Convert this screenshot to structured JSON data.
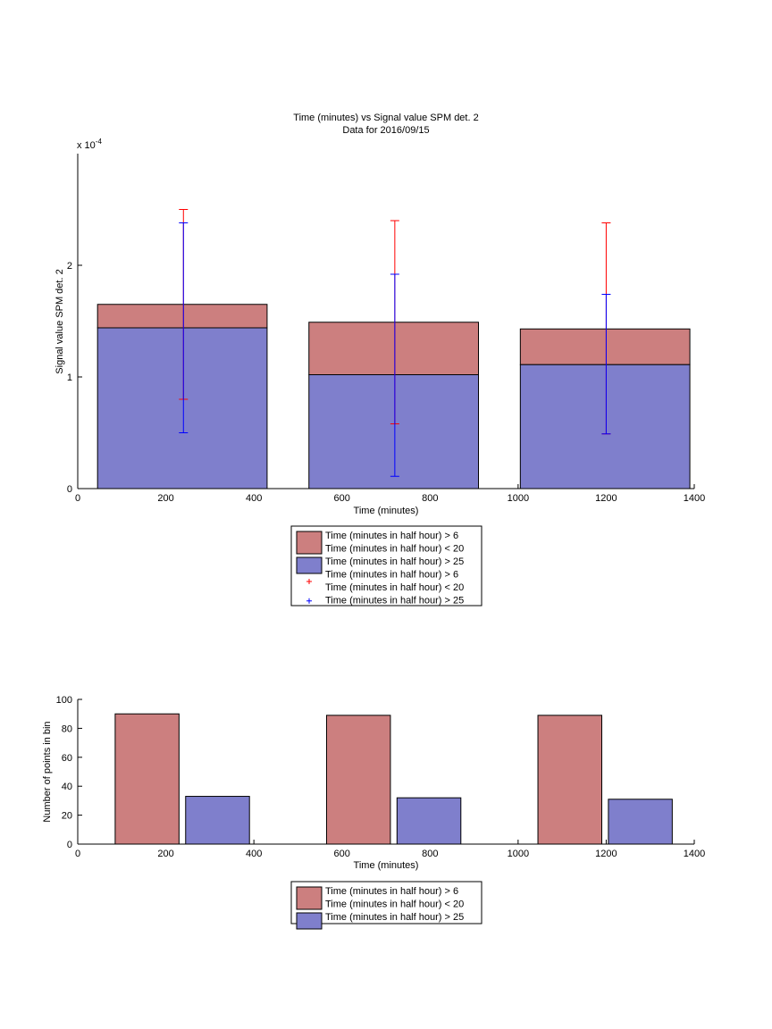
{
  "colors": {
    "red_fill": "#cc7f7f",
    "blue_fill": "#7f7fcc",
    "red_err": "#ff0000",
    "blue_err": "#0000ff"
  },
  "chart_data": [
    {
      "type": "bar",
      "title": "Time (minutes) vs Signal value SPM det. 2",
      "subtitle": "Data for 2016/09/15",
      "xlabel": "Time (minutes)",
      "ylabel": "Signal value SPM det. 2",
      "exponent_label": "x 10",
      "exponent_power": "-4",
      "xlim": [
        0,
        1400
      ],
      "ylim": [
        0,
        0.0003
      ],
      "xticks": [
        "0",
        "200",
        "400",
        "600",
        "800",
        "1000",
        "1200",
        "1400"
      ],
      "yticks": [
        "0",
        "1",
        "2"
      ],
      "bars": [
        {
          "x0": 45,
          "x1": 430,
          "red": 0.000165,
          "blue": 0.000144
        },
        {
          "x0": 525,
          "x1": 910,
          "red": 0.000149,
          "blue": 0.000102
        },
        {
          "x0": 1005,
          "x1": 1390,
          "red": 0.000143,
          "blue": 0.000111
        }
      ],
      "errorbars": [
        {
          "x": 240,
          "red_low": 8e-05,
          "red_high": 0.00025,
          "blue_low": 5e-05,
          "blue_high": 0.000238
        },
        {
          "x": 720,
          "red_low": 5.8e-05,
          "red_high": 0.00024,
          "blue_low": 1.1e-05,
          "blue_high": 0.000192
        },
        {
          "x": 1200,
          "red_low": 4.9e-05,
          "red_high": 0.000238,
          "blue_low": 4.9e-05,
          "blue_high": 0.000174
        }
      ],
      "legend": [
        {
          "kind": "patch",
          "color": "red",
          "lines": [
            "Time (minutes in half hour) > 6",
            "Time (minutes in half hour) < 20"
          ]
        },
        {
          "kind": "patch",
          "color": "blue",
          "lines": [
            "Time (minutes in half hour) > 25"
          ]
        },
        {
          "kind": "marker",
          "color": "red",
          "lines": [
            "Time (minutes in half hour) > 6",
            "Time (minutes in half hour) < 20"
          ]
        },
        {
          "kind": "marker",
          "color": "blue",
          "lines": [
            "Time (minutes in half hour) > 25"
          ]
        }
      ]
    },
    {
      "type": "bar",
      "xlabel": "Time (minutes)",
      "ylabel": "Number of points in bin",
      "xlim": [
        0,
        1400
      ],
      "ylim": [
        0,
        100
      ],
      "xticks": [
        "0",
        "200",
        "400",
        "600",
        "800",
        "1000",
        "1200",
        "1400"
      ],
      "yticks": [
        "0",
        "20",
        "40",
        "60",
        "80",
        "100"
      ],
      "bars": [
        {
          "x0": 85,
          "x1": 230,
          "value": 90,
          "color": "red"
        },
        {
          "x0": 245,
          "x1": 390,
          "value": 33,
          "color": "blue"
        },
        {
          "x0": 565,
          "x1": 710,
          "value": 89,
          "color": "red"
        },
        {
          "x0": 725,
          "x1": 870,
          "value": 32,
          "color": "blue"
        },
        {
          "x0": 1045,
          "x1": 1190,
          "value": 89,
          "color": "red"
        },
        {
          "x0": 1205,
          "x1": 1350,
          "value": 31,
          "color": "blue"
        }
      ],
      "legend": [
        {
          "kind": "patch",
          "color": "red",
          "lines": [
            "Time (minutes in half hour) > 6",
            "Time (minutes in half hour) < 20"
          ]
        },
        {
          "kind": "patch",
          "color": "blue",
          "lines": [
            "Time (minutes in half hour) > 25"
          ]
        }
      ]
    }
  ]
}
